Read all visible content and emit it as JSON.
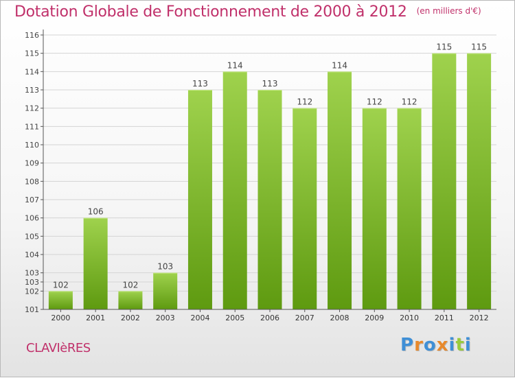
{
  "page": {
    "title": "Dotation Globale de Fonctionnement de 2000 à 2012",
    "subtitle": "(en milliers d'€)",
    "commune": "CLAVIèRES",
    "brand": "Proxiti"
  },
  "colors": {
    "title": "#c0306a",
    "bar_light": "#9fd24d",
    "bar_dark": "#5e9a10",
    "grid": "#d4d4d4",
    "brand_letters": [
      "#3f8fd6",
      "#e8892b",
      "#3f8fd6",
      "#e8892b",
      "#3f8fd6",
      "#9acb3c",
      "#3f8fd6"
    ]
  },
  "chart_data": {
    "type": "bar",
    "categories": [
      "2000",
      "2001",
      "2002",
      "2003",
      "2004",
      "2005",
      "2006",
      "2007",
      "2008",
      "2009",
      "2010",
      "2011",
      "2012"
    ],
    "values": [
      102,
      106,
      102,
      103,
      113,
      114,
      113,
      112,
      114,
      112,
      112,
      115,
      115
    ],
    "data_labels": [
      "102",
      "106",
      "102",
      "103",
      "113",
      "114",
      "113",
      "112",
      "114",
      "112",
      "112",
      "115",
      "115"
    ],
    "y_ticks": [
      101,
      102,
      102.5,
      103,
      104,
      105,
      106,
      107,
      108,
      109,
      110,
      111,
      112,
      113,
      114,
      115,
      116
    ],
    "y_tick_labels": [
      "101",
      "102",
      "103",
      "103",
      "104",
      "105",
      "106",
      "107",
      "108",
      "109",
      "110",
      "111",
      "112",
      "113",
      "114",
      "115",
      "116"
    ],
    "ylim": [
      101,
      116
    ],
    "grid": true,
    "legend": "none"
  }
}
